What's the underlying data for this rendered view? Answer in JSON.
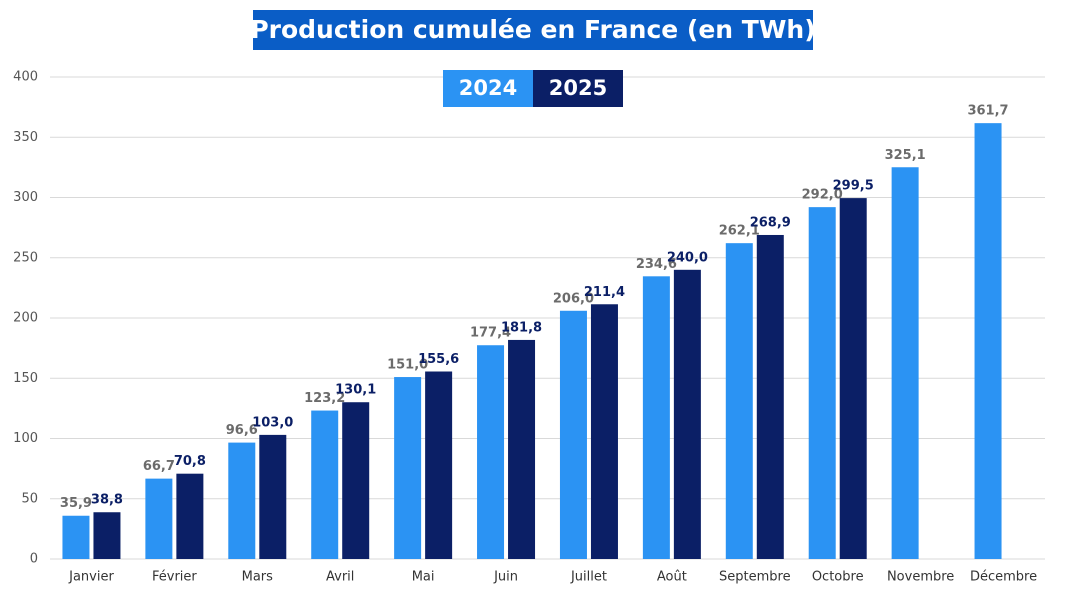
{
  "chart_data": {
    "type": "bar",
    "title": "Production cumulée en France (en TWh)",
    "categories": [
      "Janvier",
      "Février",
      "Mars",
      "Avril",
      "Mai",
      "Juin",
      "Juillet",
      "Août",
      "Septembre",
      "Octobre",
      "Novembre",
      "Décembre"
    ],
    "series": [
      {
        "name": "2024",
        "color": "#2b93f3",
        "label_color": "#6b6b6b",
        "values": [
          35.9,
          66.7,
          96.6,
          123.2,
          151.0,
          177.4,
          206.0,
          234.6,
          262.1,
          292.0,
          325.1,
          361.7
        ],
        "value_labels": [
          "35,9",
          "66,7",
          "96,6",
          "123,2",
          "151,0",
          "177,4",
          "206,0",
          "234,6",
          "262,1",
          "292,0",
          "325,1",
          "361,7"
        ]
      },
      {
        "name": "2025",
        "color": "#0b1f66",
        "label_color": "#0b1f66",
        "values": [
          38.8,
          70.8,
          103.0,
          130.1,
          155.6,
          181.8,
          211.4,
          240.0,
          268.9,
          299.5,
          null,
          null
        ],
        "value_labels": [
          "38,8",
          "70,8",
          "103,0",
          "130,1",
          "155,6",
          "181,8",
          "211,4",
          "240,0",
          "268,9",
          "299,5",
          null,
          null
        ]
      }
    ],
    "ylim": [
      0,
      400
    ],
    "yticks": [
      0,
      50,
      100,
      150,
      200,
      250,
      300,
      350,
      400
    ],
    "grid": true,
    "legend": "top-center"
  }
}
